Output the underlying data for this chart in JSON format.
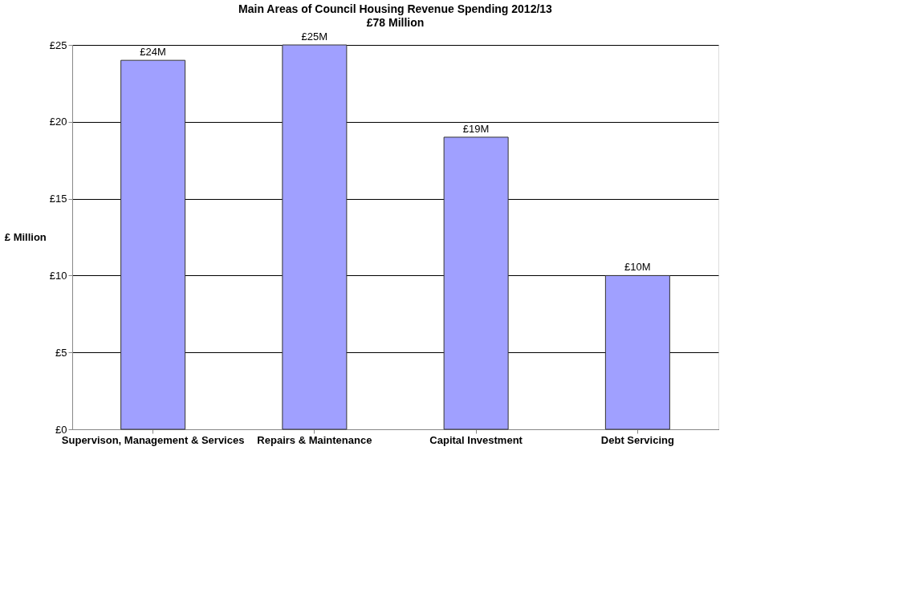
{
  "chart_data": {
    "type": "bar",
    "title": "Main Areas of Council Housing Revenue Spending 2012/13",
    "subtitle": "£78 Million",
    "ylabel": "£ Million",
    "categories": [
      "Supervison, Management & Services",
      "Repairs & Maintenance",
      "Capital Investment",
      "Debt Servicing"
    ],
    "values": [
      24,
      25,
      19,
      10
    ],
    "color": "#a0a0ff",
    "value_labels": [
      "£24M",
      "£25M",
      "£19M",
      "£10M"
    ],
    "ylim": [
      0,
      25
    ],
    "yticks": [
      {
        "value": 0,
        "label": "£0"
      },
      {
        "value": 5,
        "label": "£5"
      },
      {
        "value": 10,
        "label": "£10"
      },
      {
        "value": 15,
        "label": "£15"
      },
      {
        "value": 20,
        "label": "£20"
      },
      {
        "value": 25,
        "label": "£25"
      }
    ],
    "grid": "y"
  }
}
